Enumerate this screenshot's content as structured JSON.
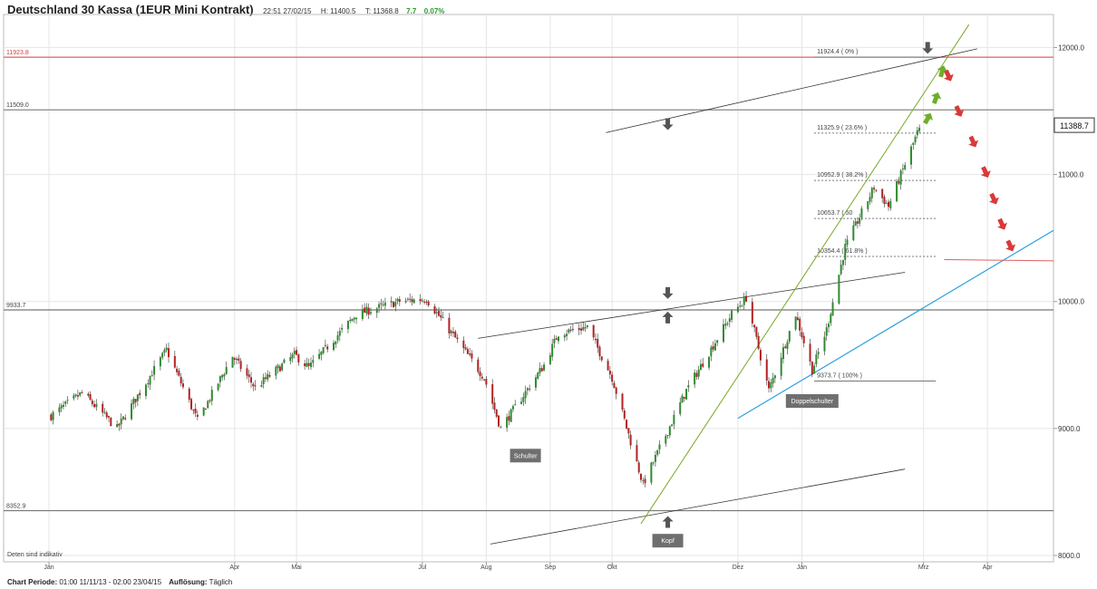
{
  "header": {
    "title": "Deutschland 30 Kassa (1EUR Mini Kontrakt)",
    "datetime": "22:51 27/02/15",
    "high": "H: 11400.5",
    "last": "T: 11368.8",
    "change": "7.7",
    "change_pct": "0.07%"
  },
  "footer": {
    "period_label": "Chart Periode:",
    "period_value": "01:00 11/11/13 - 02:00 23/04/15",
    "resolution_label": "Auflösung:",
    "resolution_value": "Täglich"
  },
  "disclaimer": "Deten sind indikativ",
  "colors": {
    "up_candle": "#2e8b2e",
    "down_candle": "#b22222",
    "resistance_line": "#e06060",
    "trend_line_green": "#7aa82a",
    "trend_line_blue": "#2aa0e0",
    "arrow_up_green": "#6fae2a",
    "arrow_down_red": "#d93a3a",
    "arrow_gray": "#555555"
  },
  "chart_data": {
    "type": "candlestick",
    "instrument": "Deutschland 30 Kassa (1EUR Mini Kontrakt)",
    "resolution": "daily",
    "ylim": [
      7950,
      12260
    ],
    "y_ticks": [
      "8000.0",
      "9000.0",
      "10000.0",
      "11000.0",
      "12000.0"
    ],
    "x_ticks": [
      "Jan",
      "Apr",
      "Mai",
      "Jul",
      "Aug",
      "Sep",
      "Okt",
      "Dez",
      "Jan",
      "Mrz",
      "Apr"
    ],
    "last_price_label": "11388.7",
    "series_path": [
      {
        "date": "2014-01-02",
        "close": 9100
      },
      {
        "date": "2014-01-17",
        "close": 9280
      },
      {
        "date": "2014-02-03",
        "close": 9000
      },
      {
        "date": "2014-02-27",
        "close": 9620
      },
      {
        "date": "2014-03-14",
        "close": 9060
      },
      {
        "date": "2014-03-31",
        "close": 9570
      },
      {
        "date": "2014-04-11",
        "close": 9320
      },
      {
        "date": "2014-04-30",
        "close": 9580
      },
      {
        "date": "2014-05-07",
        "close": 9480
      },
      {
        "date": "2014-05-30",
        "close": 9900
      },
      {
        "date": "2014-06-20",
        "close": 10000
      },
      {
        "date": "2014-07-03",
        "close": 10020
      },
      {
        "date": "2014-07-31",
        "close": 9400
      },
      {
        "date": "2014-08-08",
        "close": 9000
      },
      {
        "date": "2014-08-29",
        "close": 9500
      },
      {
        "date": "2014-09-05",
        "close": 9750
      },
      {
        "date": "2014-09-19",
        "close": 9800
      },
      {
        "date": "2014-10-01",
        "close": 9400
      },
      {
        "date": "2014-10-16",
        "close": 8560
      },
      {
        "date": "2014-11-06",
        "close": 9300
      },
      {
        "date": "2014-11-28",
        "close": 9900
      },
      {
        "date": "2014-12-05",
        "close": 10030
      },
      {
        "date": "2014-12-16",
        "close": 9300
      },
      {
        "date": "2014-12-29",
        "close": 9900
      },
      {
        "date": "2015-01-06",
        "close": 9460
      },
      {
        "date": "2015-01-13",
        "close": 9780
      },
      {
        "date": "2015-01-22",
        "close": 10430
      },
      {
        "date": "2015-02-05",
        "close": 10900
      },
      {
        "date": "2015-02-12",
        "close": 10750
      },
      {
        "date": "2015-02-27",
        "close": 11368.8
      }
    ],
    "price_lines": [
      {
        "value": 11923.8,
        "label": "11923.8",
        "color": "#e06060"
      },
      {
        "value": 11509.0,
        "label": "11509.0",
        "color": "#888888"
      },
      {
        "value": 9933.7,
        "label": "9933.7",
        "color": "#777777"
      },
      {
        "value": 8352.9,
        "label": "8352.9",
        "color": "#777777"
      }
    ],
    "fibonacci_levels": [
      {
        "value": 11924.4,
        "label": "11924.4 ( 0% )"
      },
      {
        "value": 11325.9,
        "label": "11325.9 ( 23.6% )"
      },
      {
        "value": 10952.9,
        "label": "10952.9 ( 38.2% )"
      },
      {
        "value": 10653.7,
        "label": "10653.7 ( 50"
      },
      {
        "value": 10354.4,
        "label": "10354.4 ( 61.8% )"
      },
      {
        "value": 9373.7,
        "label": "9373.7 ( 100% )"
      }
    ],
    "annotations": [
      "Schulter",
      "Kopf",
      "Doppelschulter"
    ]
  }
}
